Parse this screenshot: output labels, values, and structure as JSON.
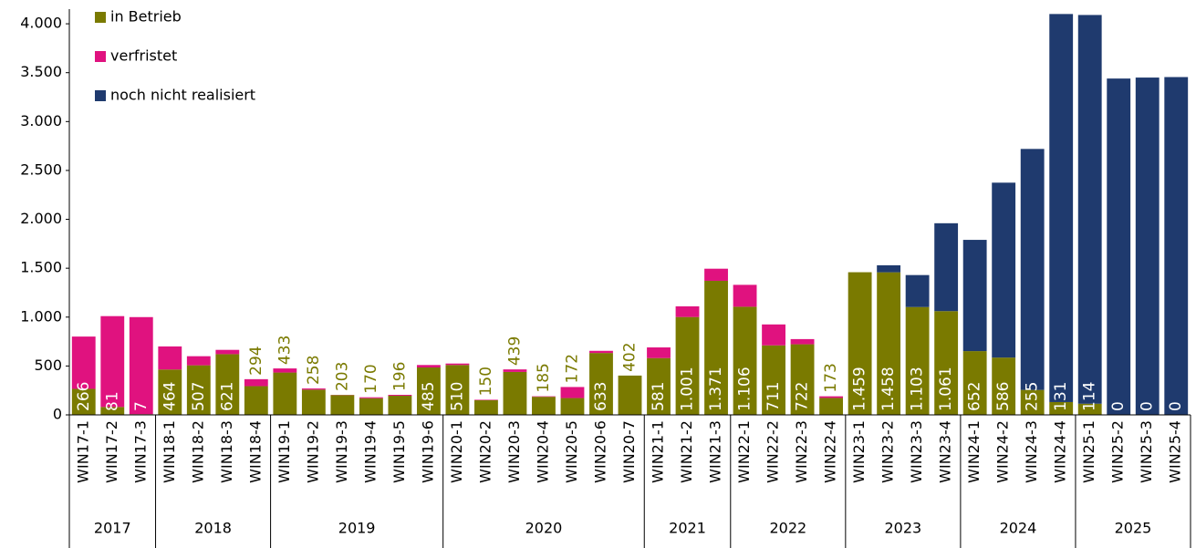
{
  "chart_data": {
    "type": "stacked_bar",
    "categories": [
      "WIN17-1",
      "WIN17-2",
      "WIN17-3",
      "WIN18-1",
      "WIN18-2",
      "WIN18-3",
      "WIN18-4",
      "WIN19-1",
      "WIN19-2",
      "WIN19-3",
      "WIN19-4",
      "WIN19-5",
      "WIN19-6",
      "WIN20-1",
      "WIN20-2",
      "WIN20-3",
      "WIN20-4",
      "WIN20-5",
      "WIN20-6",
      "WIN20-7",
      "WIN21-1",
      "WIN21-2",
      "WIN21-3",
      "WIN22-1",
      "WIN22-2",
      "WIN22-3",
      "WIN22-4",
      "WIN23-1",
      "WIN23-2",
      "WIN23-3",
      "WIN23-4",
      "WIN24-1",
      "WIN24-2",
      "WIN24-3",
      "WIN24-4",
      "WIN25-1",
      "WIN25-2",
      "WIN25-3",
      "WIN25-4"
    ],
    "groups": [
      {
        "name": "2017",
        "span": 3
      },
      {
        "name": "2018",
        "span": 4
      },
      {
        "name": "2019",
        "span": 6
      },
      {
        "name": "2020",
        "span": 7
      },
      {
        "name": "2021",
        "span": 3
      },
      {
        "name": "2022",
        "span": 4
      },
      {
        "name": "2023",
        "span": 4
      },
      {
        "name": "2024",
        "span": 4
      },
      {
        "name": "2025",
        "span": 4
      }
    ],
    "series": [
      {
        "name": "in Betrieb",
        "color": "#7a7a00",
        "values": [
          266,
          81,
          7,
          464,
          507,
          621,
          294,
          433,
          258,
          203,
          170,
          196,
          485,
          510,
          150,
          439,
          185,
          172,
          633,
          402,
          581,
          1001,
          1371,
          1106,
          711,
          722,
          173,
          1459,
          1458,
          1103,
          1061,
          652,
          586,
          255,
          131,
          114,
          0,
          0,
          0
        ],
        "value_labels": [
          "266",
          "81",
          "7",
          "464",
          "507",
          "621",
          "294",
          "433",
          "258",
          "203",
          "170",
          "196",
          "485",
          "510",
          "150",
          "439",
          "185",
          "172",
          "633",
          "402",
          "581",
          "1.001",
          "1.371",
          "1.106",
          "711",
          "722",
          "173",
          "1.459",
          "1.458",
          "1.103",
          "1.061",
          "652",
          "586",
          "255",
          "131",
          "114",
          "0",
          "0",
          "0"
        ]
      },
      {
        "name": "verfristet",
        "color": "#e0127f",
        "values": [
          535,
          929,
          993,
          236,
          93,
          44,
          71,
          42,
          12,
          2,
          10,
          9,
          25,
          15,
          5,
          26,
          5,
          113,
          22,
          0,
          109,
          109,
          124,
          224,
          214,
          53,
          17,
          0,
          0,
          0,
          0,
          0,
          0,
          0,
          0,
          0,
          0,
          0,
          0
        ]
      },
      {
        "name": "noch nicht realisiert",
        "color": "#1f3a6e",
        "values": [
          0,
          0,
          0,
          0,
          0,
          0,
          0,
          0,
          0,
          0,
          0,
          0,
          0,
          0,
          0,
          0,
          0,
          0,
          0,
          0,
          0,
          0,
          0,
          0,
          0,
          0,
          0,
          0,
          72,
          327,
          899,
          1138,
          1789,
          2465,
          3969,
          3976,
          3440,
          3450,
          3455
        ]
      }
    ],
    "ylim": [
      0,
      4150
    ],
    "yticks": [
      0,
      500,
      {
        "value": 1000,
        "label": "1.000"
      },
      {
        "value": 1500,
        "label": "1.500"
      },
      {
        "value": 2000,
        "label": "2.000"
      },
      {
        "value": 2500,
        "label": "2.500"
      },
      {
        "value": 3000,
        "label": "3.000"
      },
      {
        "value": 3500,
        "label": "3.500"
      },
      {
        "value": 4000,
        "label": "4.000"
      }
    ],
    "legend": "top-left"
  }
}
